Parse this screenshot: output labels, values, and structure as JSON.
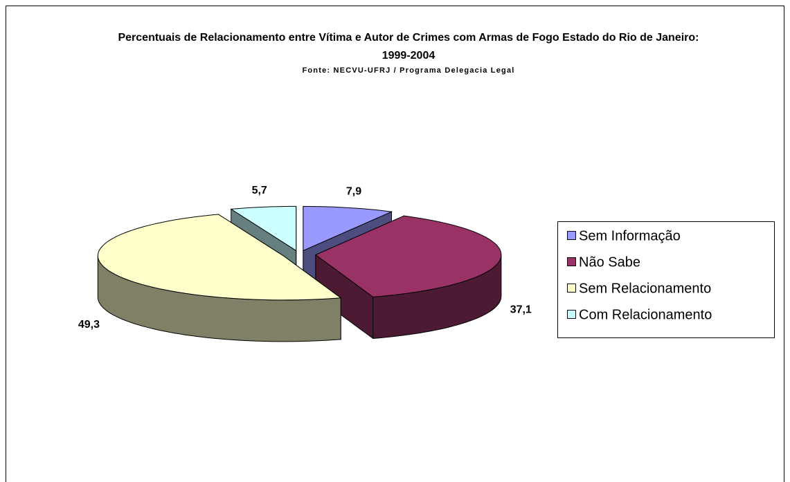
{
  "chart_data": {
    "type": "pie",
    "three_d": true,
    "title": "Percentuais de Relacionamento entre Vítima e Autor de Crimes com Armas de Fogo Estado do Rio de Janeiro: 1999-2004",
    "subtitle": "Fonte: NECVU-UFRJ / Programa Delegacia Legal",
    "categories": [
      "Sem Informação",
      "Não Sabe",
      "Sem Relacionamento",
      "Com Relacionamento"
    ],
    "values": [
      7.9,
      37.1,
      49.3,
      5.7
    ],
    "value_labels": [
      "7,9",
      "37,1",
      "49,3",
      "5,7"
    ],
    "colors": [
      "#9999ff",
      "#993366",
      "#ffffcc",
      "#ccffff"
    ],
    "legend": "right"
  }
}
